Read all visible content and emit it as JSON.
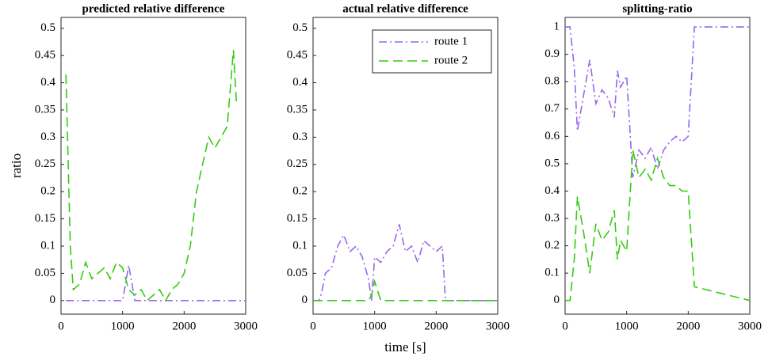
{
  "chart_data": [
    {
      "type": "line",
      "title": "predicted relative difference",
      "ylabel": "ratio",
      "x": [
        80,
        150,
        200,
        300,
        400,
        500,
        600,
        700,
        800,
        900,
        1000,
        1100,
        1200,
        1300,
        1400,
        1500,
        1600,
        1700,
        1800,
        1900,
        2000,
        2100,
        2200,
        2300,
        2400,
        2500,
        2600,
        2700,
        2800,
        2850,
        3000
      ],
      "series": [
        {
          "color": "#9966ee",
          "values": [
            0,
            0,
            0,
            0,
            0,
            0,
            0,
            0,
            0,
            0,
            0,
            0.065,
            0,
            0,
            0,
            0,
            0,
            0,
            0,
            0,
            0,
            0,
            0,
            0,
            0,
            0,
            0,
            0,
            0,
            0,
            0
          ]
        },
        {
          "color": "#33cc11",
          "values": [
            0.415,
            0.1,
            0.02,
            0.03,
            0.07,
            0.04,
            0.05,
            0.06,
            0.04,
            0.07,
            0.06,
            0.02,
            0.01,
            0.02,
            0,
            0.01,
            0.02,
            0,
            0.02,
            0.03,
            0.05,
            0.1,
            0.2,
            0.25,
            0.3,
            0.28,
            0.3,
            0.32,
            0.46,
            0.36,
            null
          ]
        }
      ],
      "xlim": [
        0,
        3000
      ],
      "xticks": [
        0,
        1000,
        2000,
        3000
      ],
      "ylim": [
        -0.025,
        0.52
      ],
      "yticks": [
        0,
        0.05,
        0.1,
        0.15,
        0.2,
        0.25,
        0.3,
        0.35,
        0.4,
        0.45,
        0.5
      ]
    },
    {
      "type": "line",
      "title": "actual relative difference",
      "xlabel": "time [s]",
      "legend": "upper right",
      "x": [
        0,
        100,
        150,
        200,
        300,
        400,
        500,
        600,
        700,
        800,
        900,
        950,
        1000,
        1100,
        1200,
        1300,
        1400,
        1500,
        1600,
        1700,
        1800,
        1900,
        2000,
        2100,
        2150,
        3000
      ],
      "series": [
        {
          "name": "route 1",
          "color": "#9966ee",
          "values": [
            0,
            0,
            0.02,
            0.05,
            0.06,
            0.1,
            0.12,
            0.09,
            0.1,
            0.08,
            0.04,
            0,
            0.08,
            0.07,
            0.09,
            0.1,
            0.14,
            0.09,
            0.1,
            0.07,
            0.11,
            0.1,
            0.09,
            0.1,
            0,
            0
          ]
        },
        {
          "name": "route 2",
          "color": "#33cc11",
          "values": [
            0,
            0,
            0,
            0,
            0,
            0,
            0,
            0,
            0,
            0,
            0,
            0.01,
            0.035,
            0,
            0,
            0,
            0,
            0,
            0,
            0,
            0,
            0,
            0,
            0,
            0,
            0
          ]
        }
      ],
      "xlim": [
        0,
        3000
      ],
      "xticks": [
        0,
        1000,
        2000,
        3000
      ],
      "ylim": [
        -0.025,
        0.52
      ],
      "yticks": [
        0,
        0.05,
        0.1,
        0.15,
        0.2,
        0.25,
        0.3,
        0.35,
        0.4,
        0.45,
        0.5
      ]
    },
    {
      "type": "line",
      "title": "splitting-ratio",
      "x": [
        0,
        80,
        150,
        200,
        300,
        400,
        500,
        600,
        700,
        800,
        850,
        900,
        1000,
        1100,
        1200,
        1300,
        1400,
        1500,
        1600,
        1700,
        1800,
        1900,
        2000,
        2100,
        3000
      ],
      "series": [
        {
          "color": "#9966ee",
          "values": [
            1,
            1,
            0.85,
            0.62,
            0.75,
            0.88,
            0.72,
            0.77,
            0.74,
            0.67,
            0.84,
            0.78,
            0.82,
            0.45,
            0.55,
            0.52,
            0.56,
            0.48,
            0.55,
            0.58,
            0.6,
            0.58,
            0.6,
            1,
            1
          ]
        },
        {
          "color": "#33cc11",
          "values": [
            0,
            0,
            0.15,
            0.38,
            0.25,
            0.1,
            0.28,
            0.22,
            0.25,
            0.33,
            0.15,
            0.22,
            0.18,
            0.55,
            0.45,
            0.48,
            0.44,
            0.52,
            0.45,
            0.42,
            0.42,
            0.4,
            0.4,
            0.05,
            0
          ]
        }
      ],
      "xlim": [
        0,
        3000
      ],
      "xticks": [
        0,
        1000,
        2000,
        3000
      ],
      "ylim": [
        -0.05,
        1.035
      ],
      "yticks": [
        0,
        0.1,
        0.2,
        0.3,
        0.4,
        0.5,
        0.6,
        0.7,
        0.8,
        0.9,
        1
      ]
    }
  ]
}
